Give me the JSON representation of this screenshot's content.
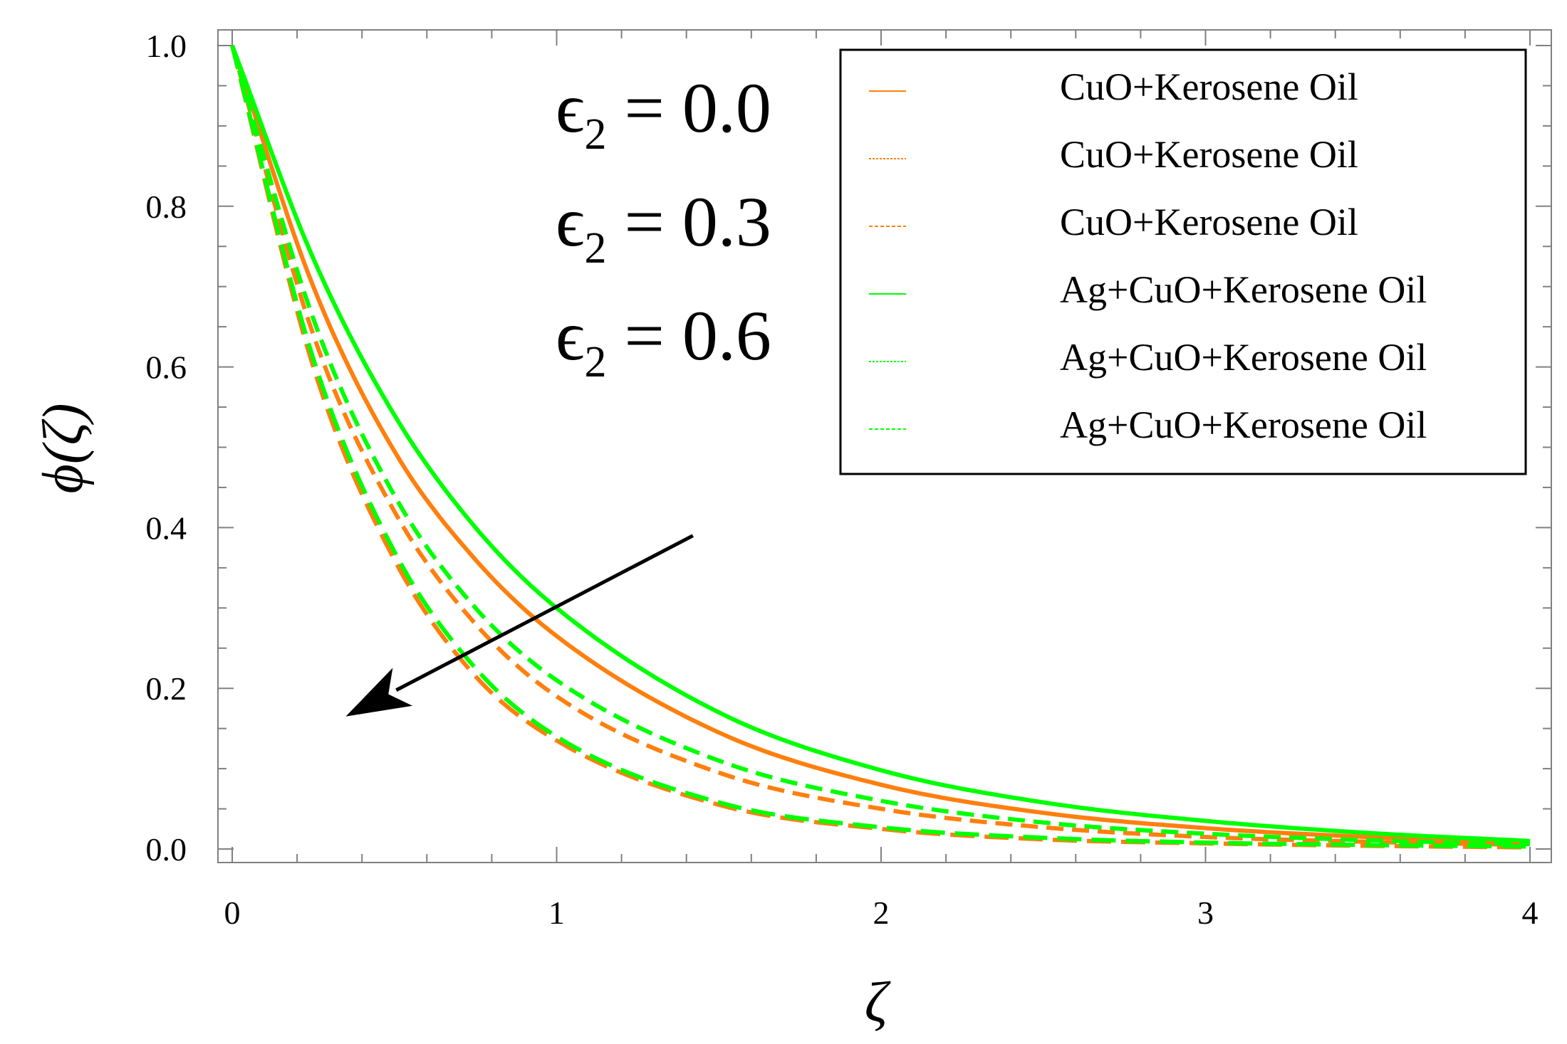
{
  "chart_data": {
    "type": "line",
    "title": "",
    "xlabel": "ζ",
    "ylabel": "ϕ(ζ)",
    "xlim": [
      0,
      4
    ],
    "ylim": [
      0,
      1
    ],
    "x_ticks": [
      "0",
      "1",
      "2",
      "3",
      "4"
    ],
    "y_ticks": [
      "0.0",
      "0.2",
      "0.4",
      "0.6",
      "0.8",
      "1.0"
    ],
    "x": [
      0,
      0.25,
      0.5,
      0.75,
      1,
      1.5,
      2,
      2.5,
      3,
      3.5,
      4
    ],
    "series": [
      {
        "name": "CuO+Kerosene Oil",
        "epsilon2": 0.0,
        "color": "#FF7F0E",
        "dash": "solid",
        "values": [
          1.0,
          0.7,
          0.495,
          0.36,
          0.265,
          0.145,
          0.08,
          0.045,
          0.026,
          0.015,
          0.008
        ]
      },
      {
        "name": "CuO+Kerosene Oil",
        "epsilon2": 0.3,
        "color": "#FF7F0E",
        "dash": "dashed",
        "values": [
          1.0,
          0.64,
          0.42,
          0.28,
          0.19,
          0.095,
          0.05,
          0.027,
          0.015,
          0.009,
          0.005
        ]
      },
      {
        "name": "CuO+Kerosene Oil",
        "epsilon2": 0.6,
        "color": "#FF7F0E",
        "dash": "dashed",
        "values": [
          1.0,
          0.6,
          0.36,
          0.215,
          0.135,
          0.055,
          0.025,
          0.012,
          0.007,
          0.004,
          0.002
        ]
      },
      {
        "name": "Ag+CuO+Kerosene Oil",
        "epsilon2": 0.0,
        "color": "#00FF00",
        "dash": "solid",
        "values": [
          1.0,
          0.735,
          0.54,
          0.4,
          0.3,
          0.17,
          0.098,
          0.058,
          0.035,
          0.02,
          0.01
        ]
      },
      {
        "name": "Ag+CuO+Kerosene Oil",
        "epsilon2": 0.3,
        "color": "#00FF00",
        "dash": "dashed",
        "values": [
          1.0,
          0.66,
          0.44,
          0.3,
          0.21,
          0.11,
          0.06,
          0.033,
          0.019,
          0.011,
          0.006
        ]
      },
      {
        "name": "Ag+CuO+Kerosene Oil",
        "epsilon2": 0.6,
        "color": "#00FF00",
        "dash": "dashed",
        "values": [
          1.0,
          0.61,
          0.37,
          0.225,
          0.14,
          0.058,
          0.027,
          0.014,
          0.008,
          0.005,
          0.003
        ]
      }
    ],
    "annotations": [
      {
        "base": "ϵ",
        "sub": "2",
        "text": " = 0.0"
      },
      {
        "base": "ϵ",
        "sub": "2",
        "text": " = 0.3"
      },
      {
        "base": "ϵ",
        "sub": "2",
        "text": " = 0.6"
      }
    ],
    "arrow": {
      "from": [
        1.42,
        0.39
      ],
      "to": [
        0.35,
        0.165
      ],
      "color": "#000000"
    },
    "legend": {
      "location": "top-right",
      "entries": [
        "CuO+Kerosene Oil",
        "CuO+Kerosene Oil",
        "CuO+Kerosene Oil",
        "Ag+CuO+Kerosene Oil",
        "Ag+CuO+Kerosene Oil",
        "Ag+CuO+Kerosene Oil"
      ]
    }
  }
}
